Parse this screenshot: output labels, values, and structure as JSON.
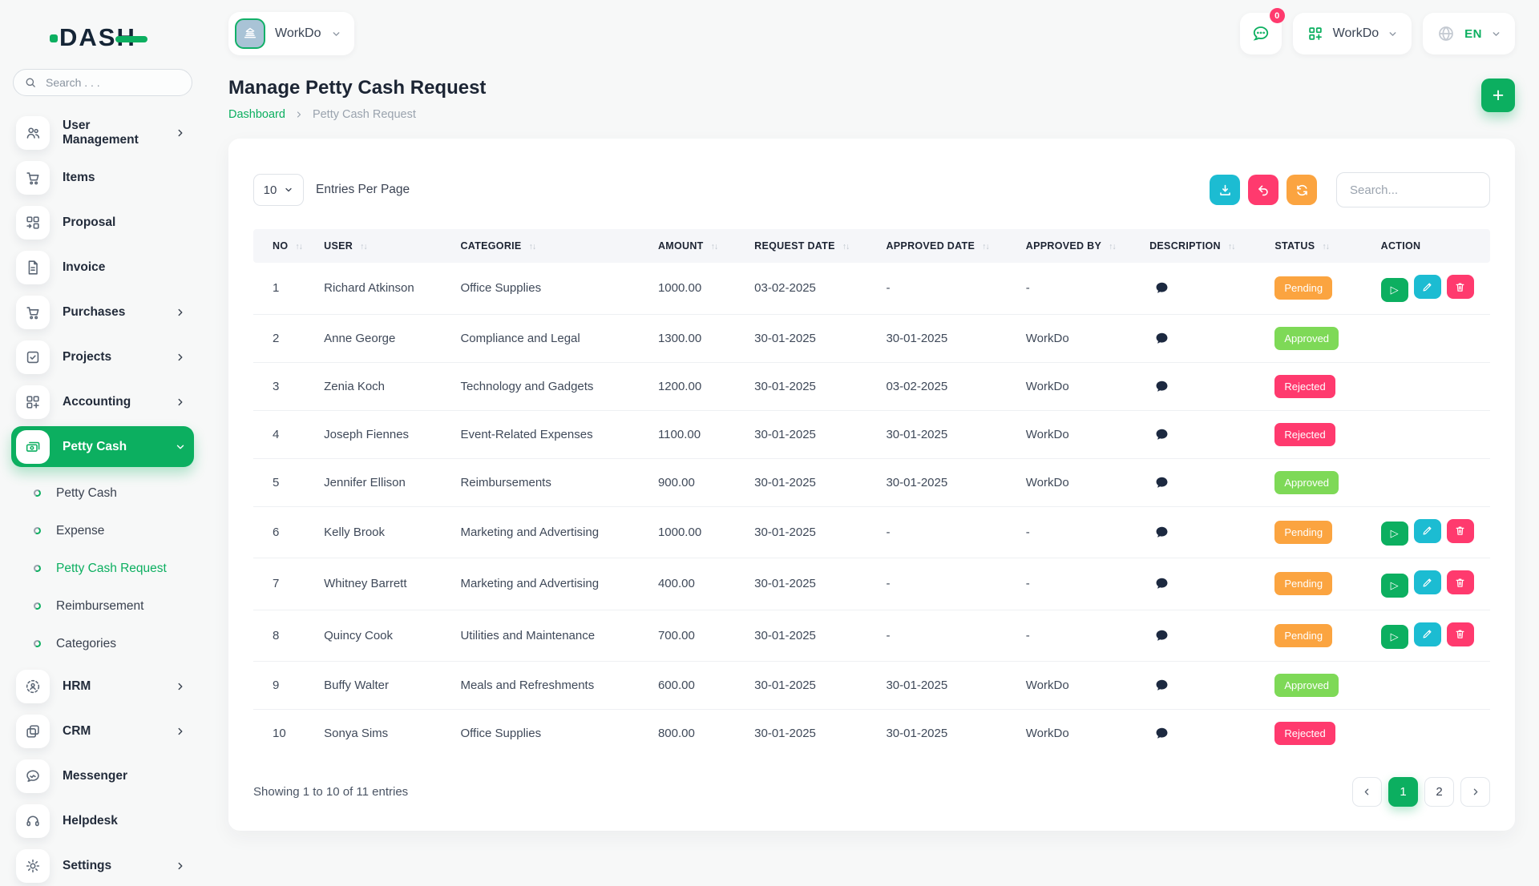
{
  "brand": {
    "logo_text": "DASH"
  },
  "sidebar": {
    "search_placeholder": "Search . . .",
    "items": [
      {
        "label": "User Management",
        "icon": "users-icon",
        "chevron": true
      },
      {
        "label": "Items",
        "icon": "cart-icon",
        "chevron": false
      },
      {
        "label": "Proposal",
        "icon": "proposal-icon",
        "chevron": false
      },
      {
        "label": "Invoice",
        "icon": "invoice-icon",
        "chevron": false
      },
      {
        "label": "Purchases",
        "icon": "purchases-icon",
        "chevron": true
      },
      {
        "label": "Projects",
        "icon": "projects-icon",
        "chevron": true
      },
      {
        "label": "Accounting",
        "icon": "accounting-icon",
        "chevron": true
      },
      {
        "label": "Petty Cash",
        "icon": "petty-cash-icon",
        "chevron": true,
        "active": true,
        "children": [
          {
            "label": "Petty Cash",
            "active": false
          },
          {
            "label": "Expense",
            "active": false
          },
          {
            "label": "Petty Cash Request",
            "active": true
          },
          {
            "label": "Reimbursement",
            "active": false
          },
          {
            "label": "Categories",
            "active": false
          }
        ]
      },
      {
        "label": "HRM",
        "icon": "hrm-icon",
        "chevron": true
      },
      {
        "label": "CRM",
        "icon": "crm-icon",
        "chevron": true
      },
      {
        "label": "Messenger",
        "icon": "messenger-icon",
        "chevron": false
      },
      {
        "label": "Helpdesk",
        "icon": "helpdesk-icon",
        "chevron": false
      },
      {
        "label": "Settings",
        "icon": "settings-icon",
        "chevron": true
      }
    ]
  },
  "header": {
    "workspace_name": "WorkDo",
    "messages_badge": "0",
    "app_switcher_label": "WorkDo",
    "language": "EN"
  },
  "page": {
    "title": "Manage Petty Cash Request",
    "breadcrumb_home": "Dashboard",
    "breadcrumb_current": "Petty Cash Request"
  },
  "toolbar": {
    "page_size": "10",
    "entries_label": "Entries Per Page",
    "search_placeholder": "Search..."
  },
  "table": {
    "columns": [
      "NO",
      "USER",
      "CATEGORIE",
      "AMOUNT",
      "REQUEST DATE",
      "APPROVED DATE",
      "APPROVED BY",
      "DESCRIPTION",
      "STATUS",
      "ACTION"
    ],
    "rows": [
      {
        "no": "1",
        "user": "Richard Atkinson",
        "categorie": "Office Supplies",
        "amount": "1000.00",
        "request_date": "03-02-2025",
        "approved_date": "-",
        "approved_by": "-",
        "status": "Pending",
        "has_actions": true
      },
      {
        "no": "2",
        "user": "Anne George",
        "categorie": "Compliance and Legal",
        "amount": "1300.00",
        "request_date": "30-01-2025",
        "approved_date": "30-01-2025",
        "approved_by": "WorkDo",
        "status": "Approved",
        "has_actions": false
      },
      {
        "no": "3",
        "user": "Zenia Koch",
        "categorie": "Technology and Gadgets",
        "amount": "1200.00",
        "request_date": "30-01-2025",
        "approved_date": "03-02-2025",
        "approved_by": "WorkDo",
        "status": "Rejected",
        "has_actions": false
      },
      {
        "no": "4",
        "user": "Joseph Fiennes",
        "categorie": "Event-Related Expenses",
        "amount": "1100.00",
        "request_date": "30-01-2025",
        "approved_date": "30-01-2025",
        "approved_by": "WorkDo",
        "status": "Rejected",
        "has_actions": false
      },
      {
        "no": "5",
        "user": "Jennifer Ellison",
        "categorie": "Reimbursements",
        "amount": "900.00",
        "request_date": "30-01-2025",
        "approved_date": "30-01-2025",
        "approved_by": "WorkDo",
        "status": "Approved",
        "has_actions": false
      },
      {
        "no": "6",
        "user": "Kelly Brook",
        "categorie": "Marketing and Advertising",
        "amount": "1000.00",
        "request_date": "30-01-2025",
        "approved_date": "-",
        "approved_by": "-",
        "status": "Pending",
        "has_actions": true
      },
      {
        "no": "7",
        "user": "Whitney Barrett",
        "categorie": "Marketing and Advertising",
        "amount": "400.00",
        "request_date": "30-01-2025",
        "approved_date": "-",
        "approved_by": "-",
        "status": "Pending",
        "has_actions": true
      },
      {
        "no": "8",
        "user": "Quincy Cook",
        "categorie": "Utilities and Maintenance",
        "amount": "700.00",
        "request_date": "30-01-2025",
        "approved_date": "-",
        "approved_by": "-",
        "status": "Pending",
        "has_actions": true
      },
      {
        "no": "9",
        "user": "Buffy Walter",
        "categorie": "Meals and Refreshments",
        "amount": "600.00",
        "request_date": "30-01-2025",
        "approved_date": "30-01-2025",
        "approved_by": "WorkDo",
        "status": "Approved",
        "has_actions": false
      },
      {
        "no": "10",
        "user": "Sonya Sims",
        "categorie": "Office Supplies",
        "amount": "800.00",
        "request_date": "30-01-2025",
        "approved_date": "30-01-2025",
        "approved_by": "WorkDo",
        "status": "Rejected",
        "has_actions": false
      }
    ]
  },
  "footer": {
    "showing": "Showing 1 to 10 of 11 entries",
    "pages": [
      "1",
      "2"
    ],
    "active_page": "1"
  },
  "colors": {
    "primary": "#0caf60",
    "pending": "#fba440",
    "approved": "#7ed957",
    "rejected": "#ff3a6e",
    "info_cyan": "#1cbcd2",
    "pink": "#ff3a6e"
  }
}
